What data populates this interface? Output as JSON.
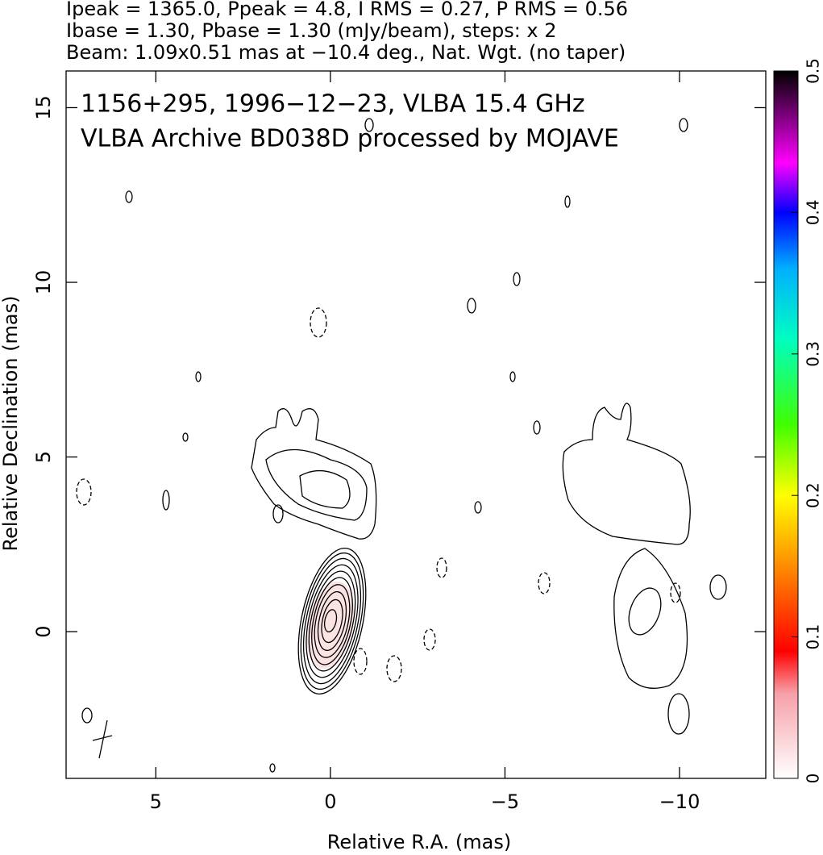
{
  "chart_data": {
    "type": "contour",
    "header": [
      "Ipeak = 1365.0, Ppeak = 4.8, I RMS = 0.27, P RMS = 0.56",
      "Ibase = 1.30, Pbase = 1.30 (mJy/beam), steps: x 2",
      "Beam: 1.09x0.51 mas at −10.4 deg., Nat. Wgt. (no taper)"
    ],
    "annotations": [
      "1156+295, 1996−12−23, VLBA 15.4 GHz",
      "VLBA Archive BD038D processed by MOJAVE"
    ],
    "x_label": "Relative R.A. (mas)",
    "y_label": "Relative Declination (mas)",
    "xlim": [
      7.57,
      -12.47
    ],
    "ylim": [
      -4.2,
      16.05
    ],
    "xticks": [
      5,
      0,
      {
        "value": -5,
        "label": "−5"
      },
      {
        "value": -10,
        "label": "−10"
      }
    ],
    "yticks": [
      0,
      5,
      10,
      15
    ],
    "colorbar": {
      "ylim": [
        0,
        0.5
      ],
      "yticks": [
        0,
        0.1,
        0.2,
        0.3,
        0.4,
        0.5
      ]
    }
  }
}
